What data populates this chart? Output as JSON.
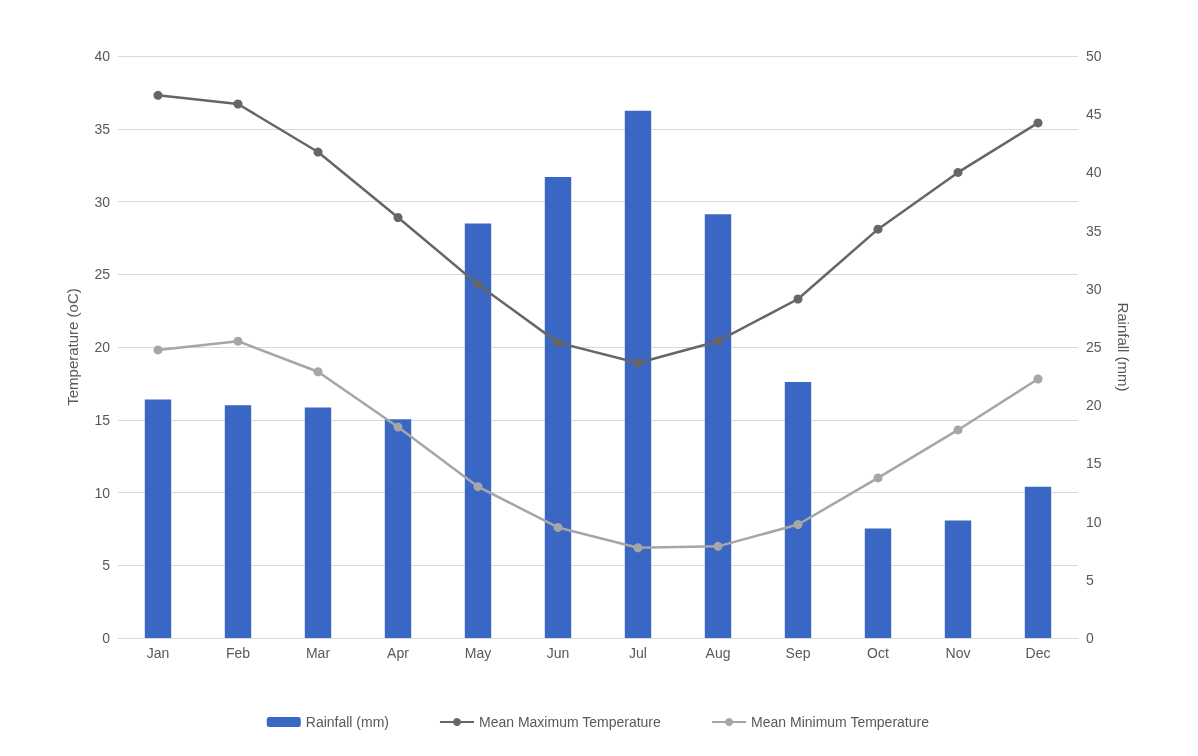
{
  "chart_data": {
    "type": "bar",
    "ylabel": "Temperature (oC)",
    "y2label": "Rainfall (mm)",
    "categories": [
      "Jan",
      "Feb",
      "Mar",
      "Apr",
      "May",
      "Jun",
      "Jul",
      "Aug",
      "Sep",
      "Oct",
      "Nov",
      "Dec"
    ],
    "series": [
      {
        "name": "Rainfall (mm)",
        "axis": "y2",
        "color": "#3a66c4",
        "values": [
          20.5,
          20,
          19.8,
          18.8,
          35.6,
          39.6,
          45.3,
          36.4,
          22,
          9.4,
          10.1,
          13
        ]
      },
      {
        "name": "Mean Maximum Temperature",
        "type": "line",
        "color": "#666666",
        "values": [
          37.3,
          36.7,
          33.4,
          28.9,
          24.3,
          20.3,
          18.9,
          20.4,
          23.3,
          28.1,
          32,
          35.4
        ]
      },
      {
        "name": "Mean Minimum Temperature",
        "type": "line",
        "color": "#a6a6a6",
        "values": [
          19.8,
          20.4,
          18.3,
          14.5,
          10.4,
          7.6,
          6.2,
          6.3,
          7.8,
          11,
          14.3,
          17.8
        ]
      }
    ],
    "ylim": [
      0,
      40
    ],
    "yticks": [
      0,
      5,
      10,
      15,
      20,
      25,
      30,
      35,
      40
    ],
    "y2lim": [
      0,
      50
    ],
    "y2ticks": [
      0,
      5,
      10,
      15,
      20,
      25,
      30,
      35,
      40,
      45,
      50
    ],
    "grid": "y",
    "legend": "bottom",
    "marker": "circle",
    "line_style": "solid"
  }
}
